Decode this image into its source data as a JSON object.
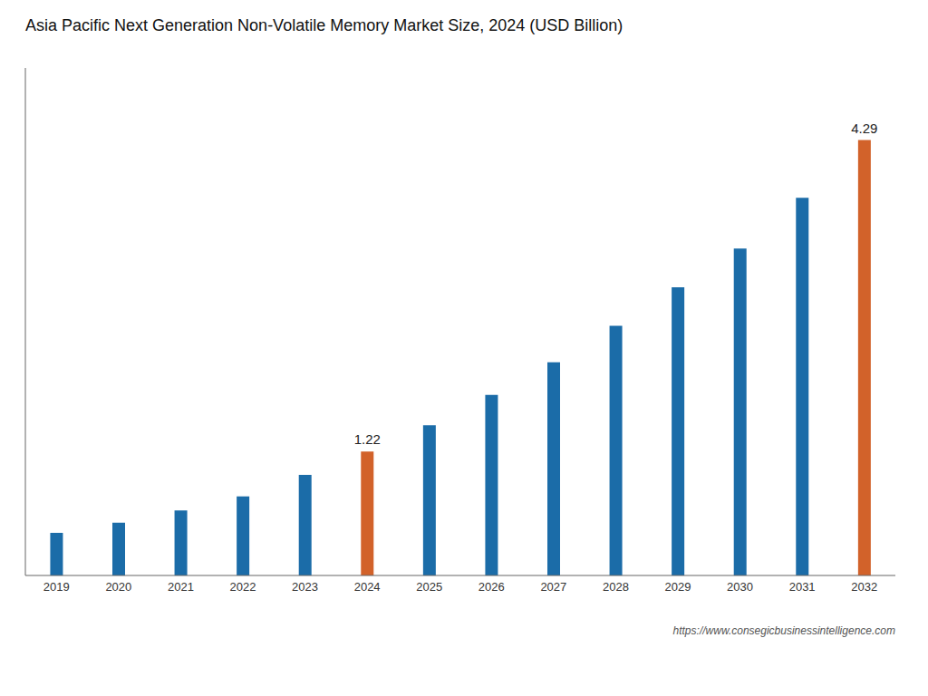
{
  "chart_data": {
    "type": "bar",
    "title": "Asia Pacific Next Generation Non-Volatile Memory Market Size, 2024 (USD Billion)",
    "categories": [
      "2019",
      "2020",
      "2021",
      "2022",
      "2023",
      "2024",
      "2025",
      "2026",
      "2027",
      "2028",
      "2029",
      "2030",
      "2031",
      "2032"
    ],
    "values": [
      0.42,
      0.52,
      0.64,
      0.78,
      0.99,
      1.22,
      1.48,
      1.78,
      2.1,
      2.46,
      2.84,
      3.22,
      3.72,
      4.29
    ],
    "value_labels": [
      null,
      null,
      null,
      null,
      null,
      "1.22",
      null,
      null,
      null,
      null,
      null,
      null,
      null,
      "4.29"
    ],
    "colors": [
      "#1b6ca8",
      "#1b6ca8",
      "#1b6ca8",
      "#1b6ca8",
      "#1b6ca8",
      "#d2622a",
      "#1b6ca8",
      "#1b6ca8",
      "#1b6ca8",
      "#1b6ca8",
      "#1b6ca8",
      "#1b6ca8",
      "#1b6ca8",
      "#d2622a"
    ],
    "ylim": [
      0,
      5.0
    ],
    "grid": false,
    "tick_labels": "x",
    "annotations": [
      "https://www.consegicbusinessintelligence.com"
    ]
  }
}
